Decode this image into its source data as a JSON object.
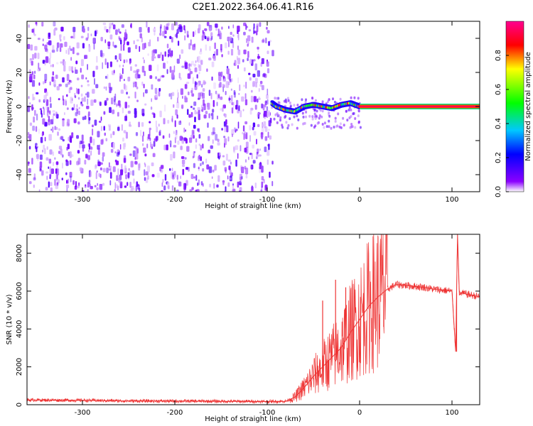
{
  "figure": {
    "title": "C2E1.2022.364.06.41.R16"
  },
  "chart_data": [
    {
      "type": "heatmap",
      "xlabel": "Height of straight line (km)",
      "ylabel": "Frequency (Hz)",
      "xlim": [
        -360,
        130
      ],
      "ylim": [
        -50,
        50
      ],
      "xticks": [
        -300,
        -200,
        -100,
        0,
        100
      ],
      "yticks": [
        -40,
        -20,
        0,
        20,
        40
      ],
      "colorbar": {
        "label": "Normalized spectral amplitude",
        "range": [
          0,
          1
        ],
        "ticks": [
          0.0,
          0.2,
          0.4,
          0.6,
          0.8
        ],
        "colormap": [
          "#ffffff",
          "#7b00ff",
          "#0000ff",
          "#00c8ff",
          "#00ff00",
          "#ffff00",
          "#ff0000",
          "#ff0080"
        ]
      },
      "regions": [
        {
          "name": "noise",
          "x_range": [
            -360,
            -95
          ],
          "freq_range": [
            -50,
            50
          ],
          "amplitude": [
            0.0,
            0.2
          ]
        },
        {
          "name": "onset",
          "x_range": [
            -95,
            0
          ],
          "freq_range": [
            -12,
            6
          ],
          "amplitude": [
            0.2,
            0.9
          ]
        },
        {
          "name": "carrier",
          "x_range": [
            0,
            130
          ],
          "freq": 0,
          "amplitude": 0.95
        }
      ],
      "carrier_track": {
        "x": [
          -95,
          -90,
          -80,
          -70,
          -60,
          -50,
          -40,
          -30,
          -20,
          -10,
          0,
          50,
          100,
          130
        ],
        "freq": [
          2,
          0,
          -2,
          -3,
          0,
          1,
          0,
          -1,
          1,
          2,
          0,
          0,
          0,
          0
        ]
      }
    },
    {
      "type": "line",
      "xlabel": "Height of straight line (km)",
      "ylabel": "SNR (10 * v/v)",
      "xlim": [
        -360,
        130
      ],
      "ylim": [
        0,
        9000
      ],
      "xticks": [
        -300,
        -200,
        -100,
        0,
        100
      ],
      "yticks": [
        0,
        2000,
        4000,
        6000,
        8000
      ],
      "color": "#ee3333",
      "series": [
        {
          "x": [
            -360,
            -300,
            -250,
            -200,
            -150,
            -100,
            -80,
            -70,
            -60,
            -50,
            -40,
            -30,
            -20,
            -10,
            0,
            10,
            20,
            30,
            40,
            50,
            60,
            70,
            80,
            90,
            100,
            104,
            106,
            108,
            110,
            120,
            130
          ],
          "values": [
            250,
            230,
            200,
            190,
            180,
            170,
            180,
            400,
            900,
            1500,
            2000,
            2500,
            3000,
            3800,
            4500,
            5200,
            5700,
            6100,
            6350,
            6300,
            6250,
            6200,
            6100,
            6050,
            6000,
            2800,
            9000,
            5800,
            5900,
            5800,
            5700
          ]
        }
      ],
      "spikes": [
        {
          "x": -40,
          "value": 5500
        },
        {
          "x": -26,
          "value": 6600
        },
        {
          "x": -15,
          "value": 6200
        },
        {
          "x": 106,
          "value": 9000
        },
        {
          "x": 105,
          "value": 2800
        }
      ]
    }
  ]
}
